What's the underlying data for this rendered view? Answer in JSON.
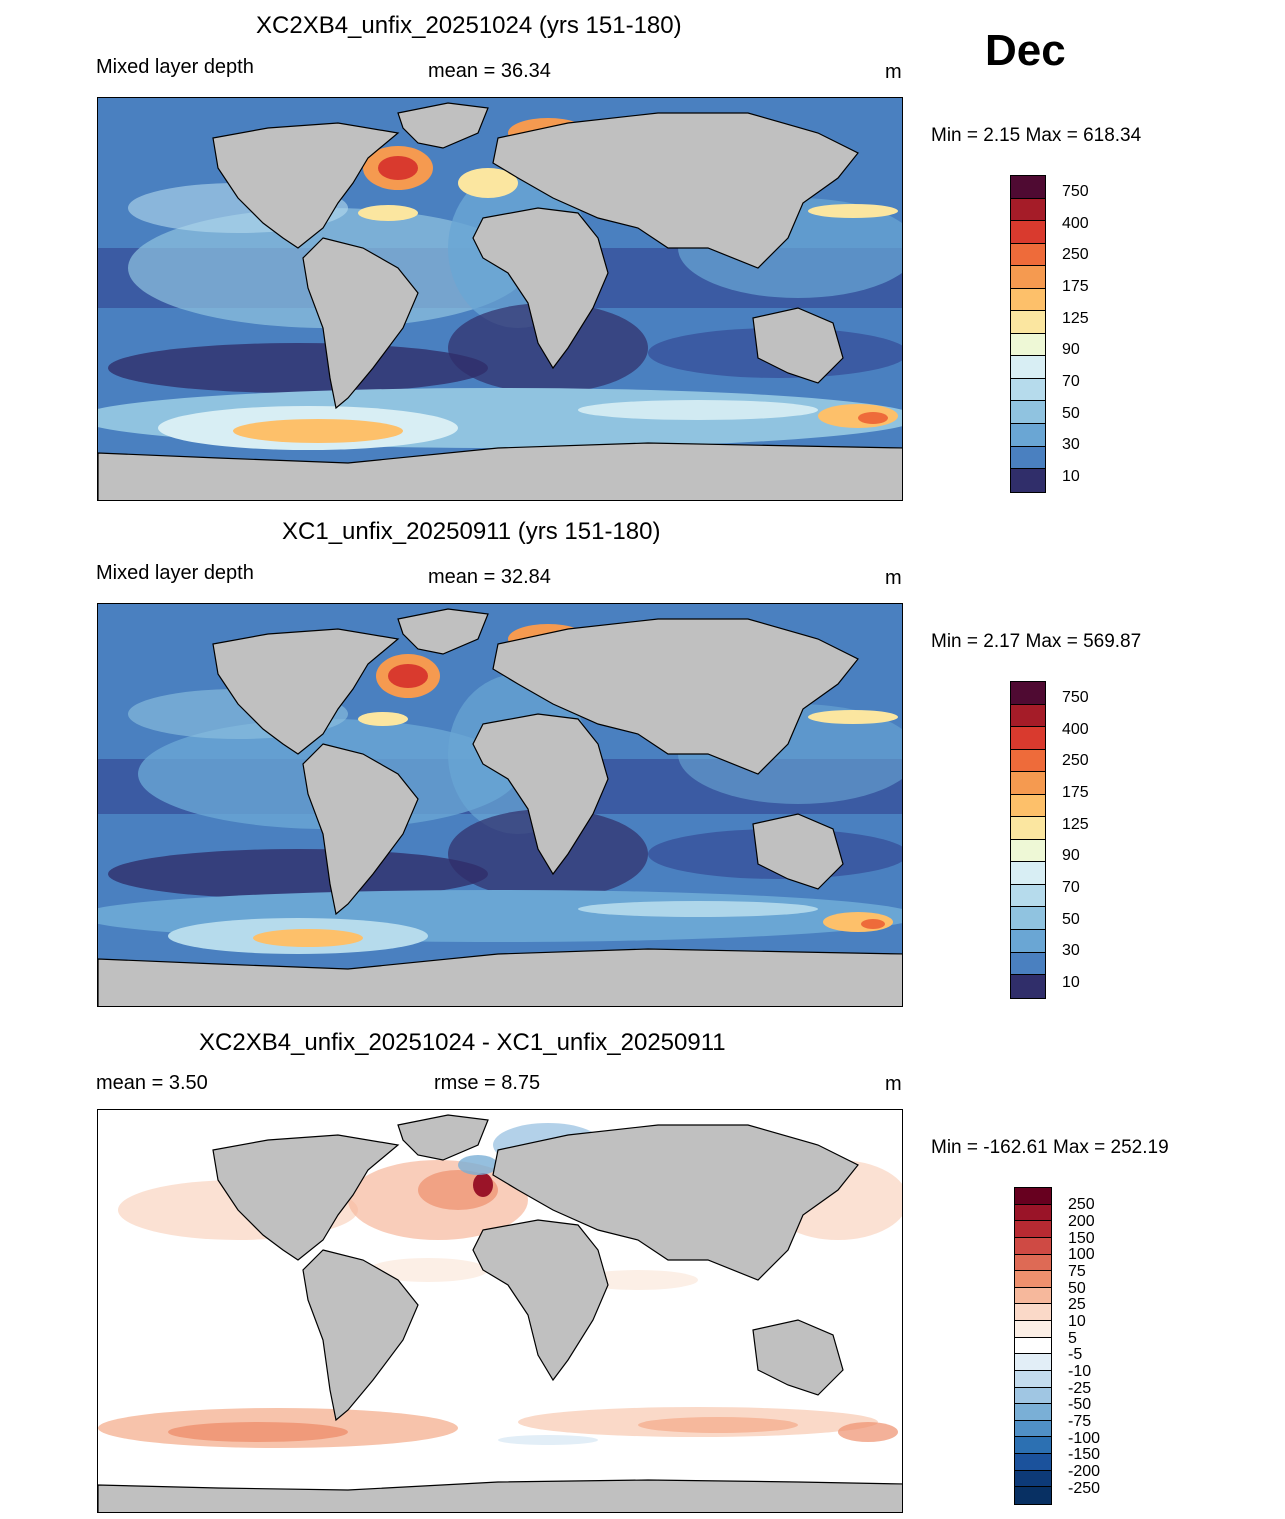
{
  "month": "Dec",
  "colors": {
    "land": "#c0c0c0",
    "fill_abs": [
      "#4f0a32",
      "#a51c28",
      "#d93a2e",
      "#ee6b3a",
      "#f59a50",
      "#fdc06a",
      "#fbe6a0",
      "#eef8d6",
      "#d8eef4",
      "#b6dbec",
      "#90c3e0",
      "#6aa6d4",
      "#4a80c0",
      "#3a56a0",
      "#302e6a"
    ],
    "fill_diff": [
      "#67001f",
      "#9a1428",
      "#b72a32",
      "#cf4a44",
      "#de6a55",
      "#ee906e",
      "#f6b89c",
      "#fad9c8",
      "#fcefe6",
      "#ffffff",
      "#e2eef7",
      "#c4dcee",
      "#a0c6e3",
      "#7aafd6",
      "#5090c6",
      "#2c70b2",
      "#1b529c",
      "#0d3a78",
      "#083063"
    ]
  },
  "panels": [
    {
      "title": "XC2XB4_unfix_20251024 (yrs 151-180)",
      "left": "Mixed layer depth",
      "center": "mean =  36.34",
      "unit": "m",
      "minmax": "Min =   2.15 Max = 618.34",
      "labels": [
        "750",
        "400",
        "250",
        "175",
        "125",
        "90",
        "70",
        "50",
        "30",
        "10"
      ]
    },
    {
      "title": "XC1_unfix_20250911 (yrs 151-180)",
      "left": "Mixed layer depth",
      "center": "mean =  32.84",
      "unit": "m",
      "minmax": "Min =   2.17 Max = 569.87",
      "labels": [
        "750",
        "400",
        "250",
        "175",
        "125",
        "90",
        "70",
        "50",
        "30",
        "10"
      ]
    },
    {
      "title": "XC2XB4_unfix_20251024 - XC1_unfix_20250911",
      "left": "mean =   3.50",
      "center": "rmse =   8.75",
      "unit": "m",
      "minmax": "Min = -162.61 Max = 252.19",
      "labels": [
        "250",
        "200",
        "150",
        "100",
        "75",
        "50",
        "25",
        "10",
        "5",
        "-5",
        "-10",
        "-25",
        "-50",
        "-75",
        "-100",
        "-150",
        "-200",
        "-250"
      ]
    }
  ]
}
